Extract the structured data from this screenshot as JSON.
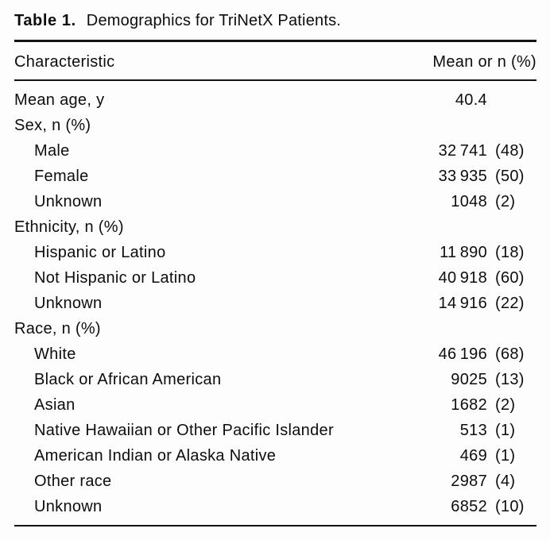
{
  "title": {
    "label": "Table 1.",
    "caption": "Demographics for TriNetX Patients."
  },
  "colors": {
    "text": "#0d0d0d",
    "rule": "#141414",
    "background": "#fdfdfd"
  },
  "table": {
    "columns": [
      "Characteristic",
      "Mean or n (%)"
    ],
    "rows": [
      {
        "label": "Mean age, y",
        "num": "40.4",
        "pct": "",
        "indent": false
      },
      {
        "label": "Sex, n (%)",
        "num": "",
        "pct": "",
        "indent": false
      },
      {
        "label": "Male",
        "num": "32 741",
        "pct": "(48)",
        "indent": true
      },
      {
        "label": "Female",
        "num": "33 935",
        "pct": "(50)",
        "indent": true
      },
      {
        "label": "Unknown",
        "num": "1048",
        "pct": "(2)",
        "indent": true
      },
      {
        "label": "Ethnicity, n (%)",
        "num": "",
        "pct": "",
        "indent": false
      },
      {
        "label": "Hispanic or Latino",
        "num": "11 890",
        "pct": "(18)",
        "indent": true
      },
      {
        "label": "Not Hispanic or Latino",
        "num": "40 918",
        "pct": "(60)",
        "indent": true
      },
      {
        "label": "Unknown",
        "num": "14 916",
        "pct": "(22)",
        "indent": true
      },
      {
        "label": "Race, n (%)",
        "num": "",
        "pct": "",
        "indent": false
      },
      {
        "label": "White",
        "num": "46 196",
        "pct": "(68)",
        "indent": true
      },
      {
        "label": "Black or African American",
        "num": "9025",
        "pct": "(13)",
        "indent": true
      },
      {
        "label": "Asian",
        "num": "1682",
        "pct": "(2)",
        "indent": true
      },
      {
        "label": "Native Hawaiian or Other Pacific Islander",
        "num": "513",
        "pct": "(1)",
        "indent": true
      },
      {
        "label": "American Indian or Alaska Native",
        "num": "469",
        "pct": "(1)",
        "indent": true
      },
      {
        "label": "Other race",
        "num": "2987",
        "pct": "(4)",
        "indent": true
      },
      {
        "label": "Unknown",
        "num": "6852",
        "pct": "(10)",
        "indent": true
      }
    ]
  }
}
